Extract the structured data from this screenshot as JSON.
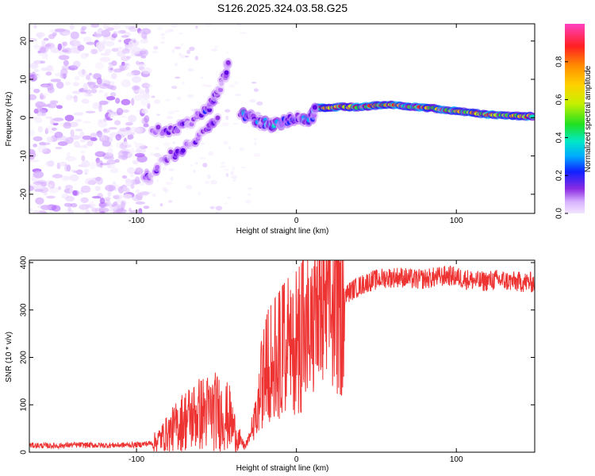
{
  "title": "S126.2025.324.03.58.G25",
  "chart_data": [
    {
      "type": "heatmap",
      "xlabel": "Height of straight line (km)",
      "ylabel": "Frequency (Hz)",
      "xlim": [
        -167,
        149
      ],
      "ylim": [
        -25,
        24.5
      ],
      "xticks": [
        -100,
        0,
        100
      ],
      "yticks": [
        -20,
        -10,
        0,
        10,
        20
      ],
      "colorbar": {
        "label": "Normalized spectral amplitude",
        "range": [
          0.0,
          1.0
        ],
        "ticks": [
          0.0,
          0.2,
          0.4,
          0.6,
          0.8
        ],
        "tick_labels": [
          "0.0",
          "0.2",
          "0.4",
          "0.6",
          "0.8"
        ],
        "colormap": [
          "#f2e6ff",
          "#d9b3ff",
          "#b266ff",
          "#8a2be2",
          "#5a00e0",
          "#1020ff",
          "#00b0ff",
          "#00e8c8",
          "#30e030",
          "#c8f000",
          "#ffd000",
          "#ff8c00",
          "#ff2020",
          "#ff40c0"
        ]
      },
      "series": [
        {
          "name": "frequency track (strong)",
          "points": [
            [
              12,
              2.5
            ],
            [
              20,
              2.7
            ],
            [
              30,
              2.8
            ],
            [
              40,
              2.8
            ],
            [
              50,
              3.2
            ],
            [
              60,
              3.3
            ],
            [
              70,
              3.0
            ],
            [
              80,
              2.6
            ],
            [
              90,
              2.2
            ],
            [
              100,
              1.8
            ],
            [
              110,
              1.3
            ],
            [
              120,
              0.8
            ],
            [
              130,
              0.5
            ],
            [
              140,
              0.4
            ],
            [
              149,
              0.3
            ]
          ]
        },
        {
          "name": "frequency track (weak)",
          "points": [
            [
              -35,
              1
            ],
            [
              -30,
              0.5
            ],
            [
              -25,
              -1
            ],
            [
              -20,
              -1.5
            ],
            [
              -15,
              -1.8
            ],
            [
              -10,
              -1.5
            ],
            [
              -5,
              -0.5
            ],
            [
              0,
              0
            ],
            [
              5,
              -1
            ],
            [
              10,
              0
            ],
            [
              12,
              2.5
            ]
          ]
        },
        {
          "name": "left branch",
          "points": [
            [
              -90,
              -3
            ],
            [
              -80,
              -3.5
            ],
            [
              -70,
              -2
            ],
            [
              -60,
              1
            ],
            [
              -55,
              3
            ],
            [
              -50,
              6
            ],
            [
              -45,
              11
            ],
            [
              -42,
              16
            ]
          ]
        },
        {
          "name": "lower branch",
          "points": [
            [
              -95,
              -16
            ],
            [
              -85,
              -12
            ],
            [
              -75,
              -9
            ],
            [
              -65,
              -6
            ],
            [
              -55,
              -3
            ],
            [
              -48,
              0
            ]
          ]
        }
      ]
    },
    {
      "type": "line",
      "xlabel": "Height of straight line (km)",
      "ylabel": "SNR (10 * v/v)",
      "xlim": [
        -167,
        149
      ],
      "ylim": [
        0,
        405
      ],
      "xticks": [
        -100,
        0,
        100
      ],
      "yticks": [
        0,
        100,
        200,
        300,
        400
      ],
      "color": "#ee3333",
      "series": [
        {
          "name": "SNR envelope",
          "x": [
            -167,
            -150,
            -140,
            -120,
            -100,
            -90,
            -80,
            -70,
            -60,
            -50,
            -42,
            -37,
            -32,
            -26,
            -22,
            -18,
            -12,
            -6,
            0,
            6,
            12,
            18,
            25,
            35,
            45,
            55,
            65,
            75,
            85,
            95,
            105,
            115,
            125,
            135,
            149
          ],
          "y": [
            15,
            14,
            16,
            15,
            16,
            20,
            45,
            75,
            90,
            95,
            80,
            35,
            12,
            60,
            140,
            180,
            200,
            220,
            230,
            250,
            275,
            300,
            320,
            345,
            362,
            370,
            372,
            366,
            370,
            375,
            368,
            362,
            366,
            362,
            360
          ]
        }
      ]
    }
  ]
}
